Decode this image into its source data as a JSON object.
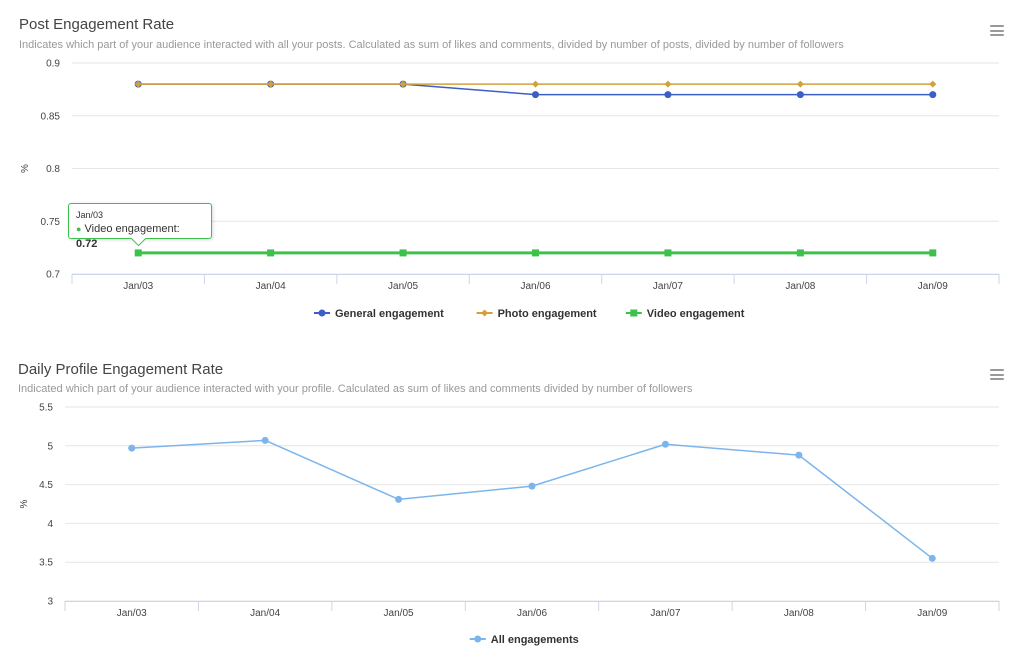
{
  "chart_data": [
    {
      "type": "line",
      "title": "Post Engagement Rate",
      "subtitle": "Indicates which part of your audience interacted with all your posts. Calculated as sum of likes and comments, divided by number of posts, divided by number of followers",
      "ylabel": "%",
      "xlabel": "",
      "ylim": [
        0.7,
        0.9
      ],
      "yticks": [
        "0.9",
        "0.85",
        "0.8",
        "0.75",
        "0.7"
      ],
      "ytick_values": [
        0.9,
        0.85,
        0.8,
        0.75,
        0.7
      ],
      "categories": [
        "Jan/03",
        "Jan/04",
        "Jan/05",
        "Jan/06",
        "Jan/07",
        "Jan/08",
        "Jan/09"
      ],
      "grid": true,
      "legend_position": "bottom-center",
      "series": [
        {
          "name": "General engagement",
          "color": "#3b5fc4",
          "marker": "circle",
          "values": [
            0.88,
            0.88,
            0.88,
            0.87,
            0.87,
            0.87,
            0.87
          ]
        },
        {
          "name": "Photo engagement",
          "color": "#d2a13a",
          "marker": "diamond",
          "values": [
            0.88,
            0.88,
            0.88,
            0.88,
            0.88,
            0.88,
            0.88
          ]
        },
        {
          "name": "Video engagement",
          "color": "#3cc24a",
          "marker": "square",
          "values": [
            0.72,
            0.72,
            0.72,
            0.72,
            0.72,
            0.72,
            0.72
          ]
        }
      ],
      "tooltip": {
        "date": "Jan/03",
        "series": "Video engagement",
        "value": "0.72"
      }
    },
    {
      "type": "line",
      "title": "Daily Profile Engagement Rate",
      "subtitle": "Indicated which part of your audience interacted with your profile. Calculated as sum of likes and comments divided by number of followers",
      "ylabel": "%",
      "xlabel": "",
      "ylim": [
        3,
        5.5
      ],
      "yticks": [
        "5.5",
        "5",
        "4.5",
        "4",
        "3.5",
        "3"
      ],
      "ytick_values": [
        5.5,
        5,
        4.5,
        4,
        3.5,
        3
      ],
      "categories": [
        "Jan/03",
        "Jan/04",
        "Jan/05",
        "Jan/06",
        "Jan/07",
        "Jan/08",
        "Jan/09"
      ],
      "grid": true,
      "legend_position": "bottom-center",
      "series": [
        {
          "name": "All engagements",
          "color": "#7cb5ec",
          "marker": "circle",
          "values": [
            4.97,
            5.07,
            4.31,
            4.48,
            5.02,
            4.88,
            3.55
          ]
        }
      ]
    }
  ]
}
